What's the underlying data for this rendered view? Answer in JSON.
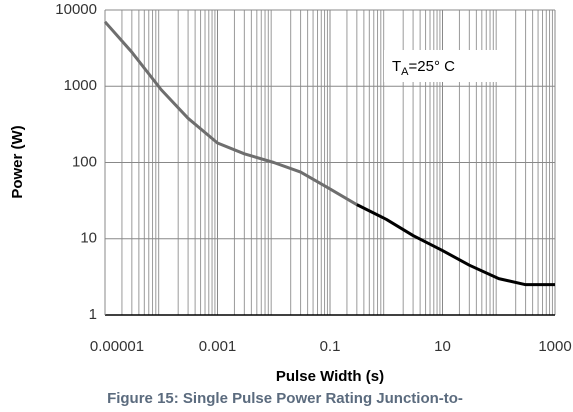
{
  "chart_data": {
    "type": "line",
    "x_label": "Pulse Width (s)",
    "y_label": "Power (W)",
    "caption": "Figure 15: Single Pulse Power Rating Junction-to-",
    "annotation": {
      "main": "T",
      "sub": "A",
      "rest": "=25° C"
    },
    "x": [
      1e-05,
      3e-05,
      0.0001,
      0.0003,
      0.001,
      0.003,
      0.01,
      0.03,
      0.1,
      0.3,
      1,
      3,
      10,
      30,
      100,
      300,
      1000
    ],
    "series": [
      {
        "color": "#6e6e6e",
        "values": [
          7000,
          2800,
          900,
          380,
          180,
          130,
          100,
          75,
          45,
          28,
          null,
          null,
          null,
          null,
          null,
          null,
          null
        ]
      },
      {
        "color": "#000000",
        "values": [
          null,
          null,
          null,
          null,
          null,
          null,
          null,
          null,
          null,
          28,
          18,
          11,
          7,
          4.5,
          3,
          2.5,
          2.5
        ]
      }
    ],
    "xlim": [
      1e-05,
      1000
    ],
    "ylim": [
      1,
      10000
    ],
    "xticks": [
      1e-05,
      0.001,
      0.1,
      10,
      1000
    ],
    "yticks": [
      1,
      10,
      100,
      1000,
      10000
    ],
    "xscale": "log",
    "yscale": "log",
    "grid": true,
    "minor_xgrid": true
  }
}
